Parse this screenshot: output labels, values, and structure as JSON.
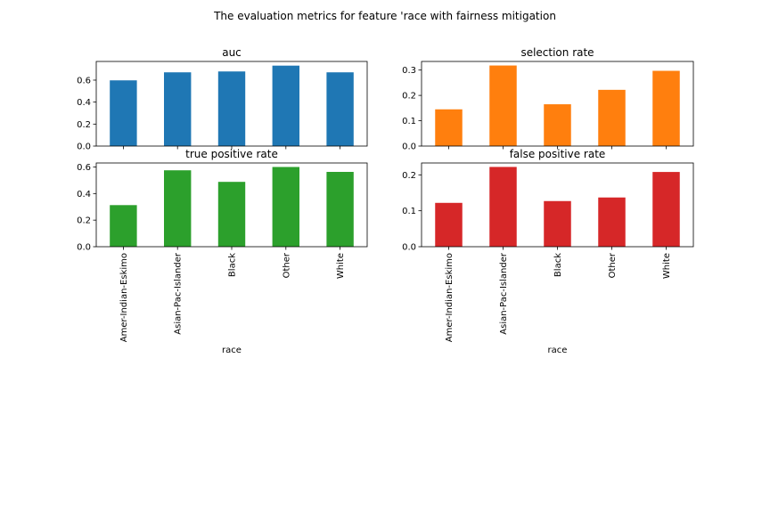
{
  "figure": {
    "suptitle": "The evaluation metrics for feature 'race with fairness mitigation"
  },
  "chart_data": [
    {
      "type": "bar",
      "title": "auc",
      "categories": [
        "Amer-Indian-Eskimo",
        "Asian-Pac-Islander",
        "Black",
        "Other",
        "White"
      ],
      "values": [
        0.598,
        0.671,
        0.679,
        0.732,
        0.671
      ],
      "color": "#1f77b4",
      "ylim": [
        0,
        0.77
      ],
      "yticks": [
        0.0,
        0.2,
        0.4,
        0.6
      ],
      "ytick_labels": [
        "0.0",
        "0.2",
        "0.4",
        "0.6"
      ],
      "xlabel": "",
      "show_xticklabels": false
    },
    {
      "type": "bar",
      "title": "selection rate",
      "categories": [
        "Amer-Indian-Eskimo",
        "Asian-Pac-Islander",
        "Black",
        "Other",
        "White"
      ],
      "values": [
        0.145,
        0.318,
        0.165,
        0.222,
        0.297
      ],
      "color": "#ff7f0e",
      "ylim": [
        0,
        0.334
      ],
      "yticks": [
        0.0,
        0.1,
        0.2,
        0.3
      ],
      "ytick_labels": [
        "0.0",
        "0.1",
        "0.2",
        "0.3"
      ],
      "xlabel": "",
      "show_xticklabels": false
    },
    {
      "type": "bar",
      "title": "true positive rate",
      "categories": [
        "Amer-Indian-Eskimo",
        "Asian-Pac-Islander",
        "Black",
        "Other",
        "White"
      ],
      "values": [
        0.313,
        0.575,
        0.488,
        0.6,
        0.563
      ],
      "color": "#2ca02c",
      "ylim": [
        0,
        0.63
      ],
      "yticks": [
        0.0,
        0.2,
        0.4,
        0.6
      ],
      "ytick_labels": [
        "0.0",
        "0.2",
        "0.4",
        "0.6"
      ],
      "xlabel": "race",
      "show_xticklabels": true
    },
    {
      "type": "bar",
      "title": "false positive rate",
      "categories": [
        "Amer-Indian-Eskimo",
        "Asian-Pac-Islander",
        "Black",
        "Other",
        "White"
      ],
      "values": [
        0.122,
        0.222,
        0.127,
        0.137,
        0.208
      ],
      "color": "#d62728",
      "ylim": [
        0,
        0.233
      ],
      "yticks": [
        0.0,
        0.1,
        0.2
      ],
      "ytick_labels": [
        "0.0",
        "0.1",
        "0.2"
      ],
      "xlabel": "race",
      "show_xticklabels": true
    }
  ]
}
